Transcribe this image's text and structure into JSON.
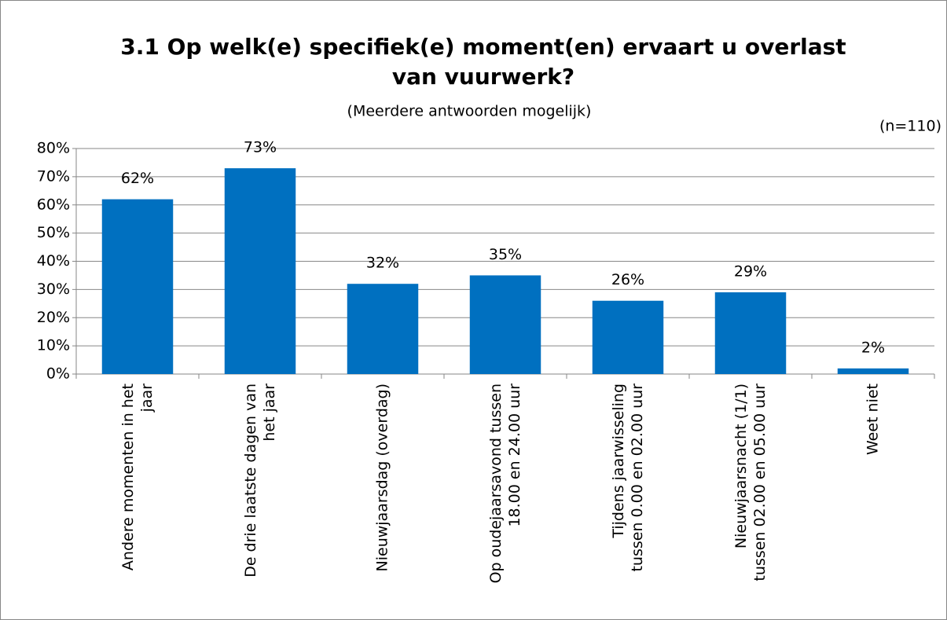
{
  "chart_data": {
    "type": "bar",
    "title": "3.1 Op welk(e) specifiek(e) moment(en) ervaart u overlast\nvan vuurwerk?",
    "subtitle": "(Meerdere antwoorden mogelijk)",
    "annotation": "(n=110)",
    "categories": [
      "Andere momenten in het\njaar",
      "De drie laatste dagen van\nhet jaar",
      "Nieuwjaarsdag (overdag)",
      "Op oudejaarsavond tussen\n18.00 en 24.00 uur",
      "Tijdens jaarwisseling\ntussen 0.00 en 02.00 uur",
      "Nieuwjaarsnacht (1/1)\ntussen 02.00 en 05.00 uur",
      "Weet niet"
    ],
    "values": [
      62,
      73,
      32,
      35,
      26,
      29,
      2
    ],
    "value_labels": [
      "62%",
      "73%",
      "32%",
      "35%",
      "26%",
      "29%",
      "2%"
    ],
    "color": "#0070c0",
    "ylim": [
      0,
      80
    ],
    "yticks": [
      {
        "value": 0,
        "label": "0%"
      },
      {
        "value": 10,
        "label": "10%"
      },
      {
        "value": 20,
        "label": "20%"
      },
      {
        "value": 30,
        "label": "30%"
      },
      {
        "value": 40,
        "label": "40%"
      },
      {
        "value": 50,
        "label": "50%"
      },
      {
        "value": 60,
        "label": "60%"
      },
      {
        "value": 70,
        "label": "70%"
      },
      {
        "value": 80,
        "label": "80%"
      }
    ],
    "grid": true
  }
}
